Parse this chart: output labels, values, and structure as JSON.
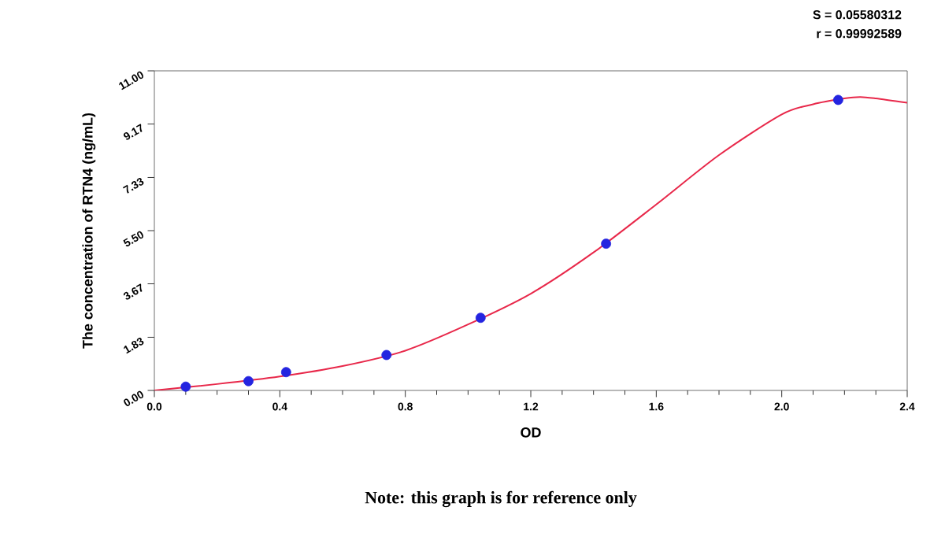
{
  "chart_data": {
    "type": "scatter",
    "xlabel": "OD",
    "ylabel": "The concentration of RTN4 (ng/mL)",
    "annotations": [
      "S = 0.05580312",
      "r = 0.99992589",
      "Note: this graph is for reference only"
    ],
    "xlim": [
      0,
      2.4
    ],
    "ylim": [
      0,
      11
    ],
    "xticks": [
      {
        "value": 0,
        "label": "0.0"
      },
      0.4,
      0.8,
      1.2,
      1.6,
      {
        "value": 2,
        "label": "2.0"
      },
      2.4
    ],
    "yticks": [
      {
        "value": 0,
        "label": "0.00"
      },
      1.83,
      3.67,
      {
        "value": 5.5,
        "label": "5.50"
      },
      7.33,
      9.17,
      {
        "value": 11,
        "label": "11.00"
      }
    ],
    "series": [
      {
        "type": "line",
        "color": "#e8284a",
        "marker": "none",
        "line_style": "solid",
        "x": [
          0,
          0.2,
          0.4,
          0.6,
          0.8,
          1.0,
          1.2,
          1.4,
          1.6,
          1.8,
          2.0,
          2.1,
          2.2,
          2.25,
          2.3,
          2.4
        ],
        "values": [
          0,
          0.22,
          0.48,
          0.84,
          1.37,
          2.27,
          3.33,
          4.75,
          6.4,
          8.1,
          9.5,
          9.85,
          10.05,
          10.1,
          10.05,
          9.9
        ]
      },
      {
        "color": "#2424e0",
        "marker": "circle",
        "x": [
          0.1,
          0.3,
          0.42,
          0.74,
          1.04,
          1.44,
          2.18
        ],
        "values": [
          0.13,
          0.32,
          0.63,
          1.22,
          2.5,
          5.05,
          10.0
        ]
      }
    ]
  }
}
